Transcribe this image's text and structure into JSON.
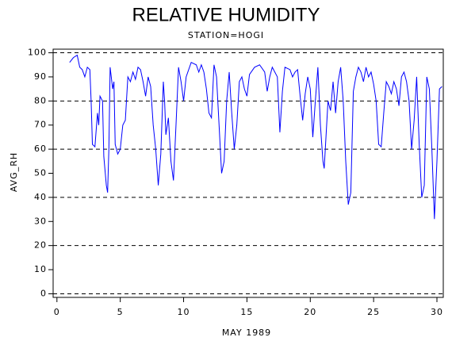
{
  "chart_data": {
    "type": "line",
    "title": "RELATIVE HUMIDITY",
    "subtitle": "STATION=HOGI",
    "x_label": "MAY 1989",
    "y_label": "AVG_RH",
    "xlim": [
      -0.3,
      30.5
    ],
    "ylim": [
      -1.5,
      101.5
    ],
    "xticks": [
      0,
      5,
      10,
      15,
      20,
      25,
      30
    ],
    "yticks": [
      0,
      10,
      20,
      30,
      40,
      50,
      60,
      70,
      80,
      90,
      100
    ],
    "y_reflines": [
      0,
      20,
      40,
      60,
      80,
      100
    ],
    "series": [
      {
        "name": "AVG_RH",
        "color": "#0000ff",
        "x": [
          1.0,
          1.3,
          1.6,
          1.8,
          2.0,
          2.2,
          2.4,
          2.6,
          2.7,
          2.8,
          3.0,
          3.2,
          3.3,
          3.4,
          3.6,
          3.7,
          3.9,
          4.0,
          4.1,
          4.2,
          4.4,
          4.5,
          4.6,
          4.8,
          5.0,
          5.2,
          5.4,
          5.6,
          5.8,
          6.0,
          6.2,
          6.4,
          6.6,
          6.8,
          7.0,
          7.2,
          7.4,
          7.6,
          7.8,
          8.0,
          8.2,
          8.4,
          8.5,
          8.6,
          8.8,
          9.0,
          9.2,
          9.4,
          9.6,
          9.8,
          10.0,
          10.2,
          10.6,
          11.0,
          11.2,
          11.4,
          11.6,
          11.8,
          12.0,
          12.2,
          12.4,
          12.6,
          12.8,
          13.0,
          13.2,
          13.4,
          13.6,
          13.8,
          14.0,
          14.2,
          14.4,
          14.6,
          14.8,
          15.0,
          15.2,
          15.6,
          16.0,
          16.4,
          16.6,
          16.8,
          17.0,
          17.2,
          17.4,
          17.6,
          17.8,
          18.0,
          18.4,
          18.6,
          18.8,
          19.0,
          19.2,
          19.4,
          19.6,
          19.8,
          20.0,
          20.2,
          20.4,
          20.6,
          20.8,
          21.0,
          21.1,
          21.4,
          21.6,
          21.8,
          22.0,
          22.2,
          22.4,
          22.6,
          22.8,
          23.0,
          23.2,
          23.4,
          23.6,
          23.8,
          24.0,
          24.2,
          24.4,
          24.6,
          24.8,
          25.0,
          25.2,
          25.4,
          25.6,
          25.8,
          26.0,
          26.2,
          26.4,
          26.6,
          26.8,
          27.0,
          27.2,
          27.4,
          27.6,
          27.8,
          28.0,
          28.2,
          28.4,
          28.6,
          28.8,
          29.0,
          29.2,
          29.4,
          29.6,
          29.8,
          30.0,
          30.2,
          30.4
        ],
        "values": [
          96,
          98,
          99,
          94,
          93,
          90,
          94,
          93,
          80,
          62,
          61,
          75,
          70,
          82,
          80,
          57,
          45,
          42,
          60,
          94,
          85,
          88,
          62,
          58,
          60,
          70,
          72,
          90,
          88,
          92,
          89,
          94,
          93,
          88,
          82,
          90,
          86,
          70,
          60,
          45,
          58,
          88,
          80,
          66,
          73,
          55,
          47,
          70,
          94,
          88,
          80,
          90,
          96,
          95,
          92,
          95,
          92,
          85,
          75,
          73,
          95,
          90,
          70,
          50,
          55,
          80,
          92,
          75,
          60,
          70,
          88,
          90,
          85,
          82,
          91,
          94,
          95,
          92,
          84,
          90,
          94,
          92,
          90,
          67,
          84,
          94,
          93,
          90,
          92,
          93,
          82,
          72,
          83,
          90,
          85,
          65,
          80,
          94,
          70,
          55,
          52,
          80,
          76,
          88,
          75,
          88,
          94,
          80,
          55,
          37,
          42,
          84,
          90,
          94,
          92,
          88,
          94,
          90,
          92,
          87,
          80,
          62,
          61,
          75,
          88,
          86,
          83,
          88,
          85,
          78,
          90,
          92,
          88,
          80,
          60,
          72,
          90,
          62,
          40,
          45,
          90,
          85,
          60,
          31,
          55,
          85,
          86
        ]
      }
    ]
  }
}
